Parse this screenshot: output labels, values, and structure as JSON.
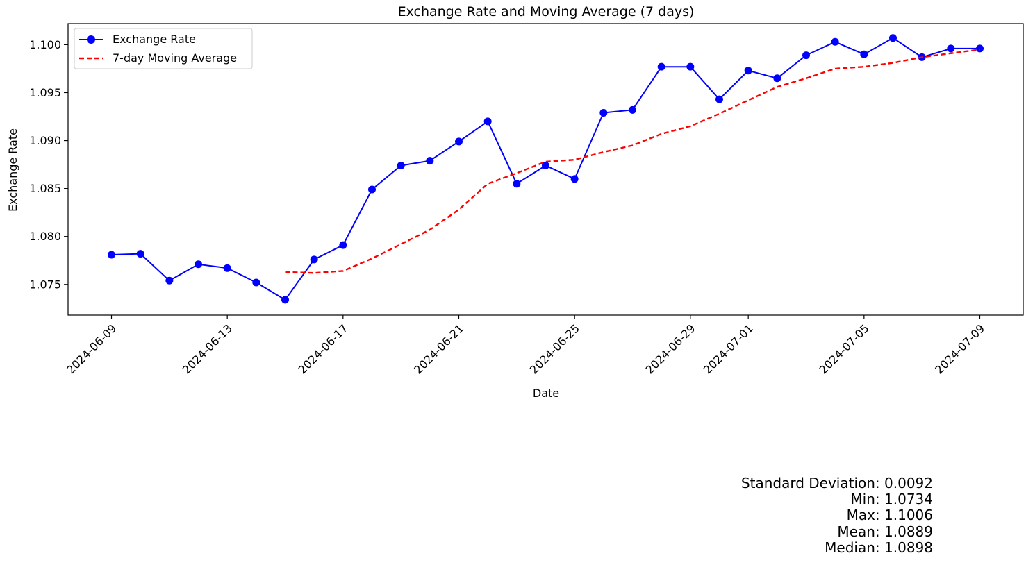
{
  "chart_data": {
    "type": "line",
    "title": "Exchange Rate and Moving Average (7 days)",
    "xlabel": "Date",
    "ylabel": "Exchange Rate",
    "x": [
      "2024-06-09",
      "2024-06-10",
      "2024-06-11",
      "2024-06-12",
      "2024-06-13",
      "2024-06-14",
      "2024-06-15",
      "2024-06-16",
      "2024-06-17",
      "2024-06-18",
      "2024-06-19",
      "2024-06-20",
      "2024-06-21",
      "2024-06-22",
      "2024-06-23",
      "2024-06-24",
      "2024-06-25",
      "2024-06-26",
      "2024-06-27",
      "2024-06-28",
      "2024-06-29",
      "2024-06-30",
      "2024-07-01",
      "2024-07-02",
      "2024-07-03",
      "2024-07-04",
      "2024-07-05",
      "2024-07-06",
      "2024-07-07",
      "2024-07-08",
      "2024-07-09"
    ],
    "xticks": [
      "2024-06-09",
      "2024-06-13",
      "2024-06-17",
      "2024-06-21",
      "2024-06-25",
      "2024-06-29",
      "2024-07-01",
      "2024-07-05",
      "2024-07-09"
    ],
    "yticks": [
      "1.075",
      "1.080",
      "1.085",
      "1.090",
      "1.095",
      "1.100"
    ],
    "ylim": [
      1.0718,
      1.1022
    ],
    "grid": false,
    "legend_position": "upper-left",
    "series": [
      {
        "name": "Exchange Rate",
        "style": "solid-with-markers",
        "color": "#0000ff",
        "values": [
          1.0781,
          1.0782,
          1.0754,
          1.0771,
          1.0767,
          1.0752,
          1.0734,
          1.0776,
          1.0791,
          1.0849,
          1.0874,
          1.0879,
          1.0899,
          1.092,
          1.0855,
          1.0874,
          1.086,
          1.0929,
          1.0932,
          1.0977,
          1.0977,
          1.0943,
          1.0973,
          1.0965,
          1.0989,
          1.1003,
          1.099,
          1.1007,
          1.0987,
          1.0996,
          1.0996
        ]
      },
      {
        "name": "7-day Moving Average",
        "style": "dashed",
        "color": "#ff0000",
        "values": [
          null,
          null,
          null,
          null,
          null,
          null,
          1.0763,
          1.0762,
          1.0764,
          1.0777,
          1.0792,
          1.0807,
          1.0828,
          1.0855,
          1.0866,
          1.0878,
          1.088,
          1.0888,
          1.0895,
          1.0907,
          1.0915,
          1.0928,
          1.0942,
          1.0956,
          1.0965,
          1.0975,
          1.0977,
          1.0981,
          1.0987,
          1.0991,
          1.0995
        ]
      }
    ]
  },
  "stats": {
    "std": "Standard Deviation: 0.0092",
    "min": "Min: 1.0734",
    "max": "Max: 1.1006",
    "mean": "Mean: 1.0889",
    "median": "Median: 1.0898"
  }
}
